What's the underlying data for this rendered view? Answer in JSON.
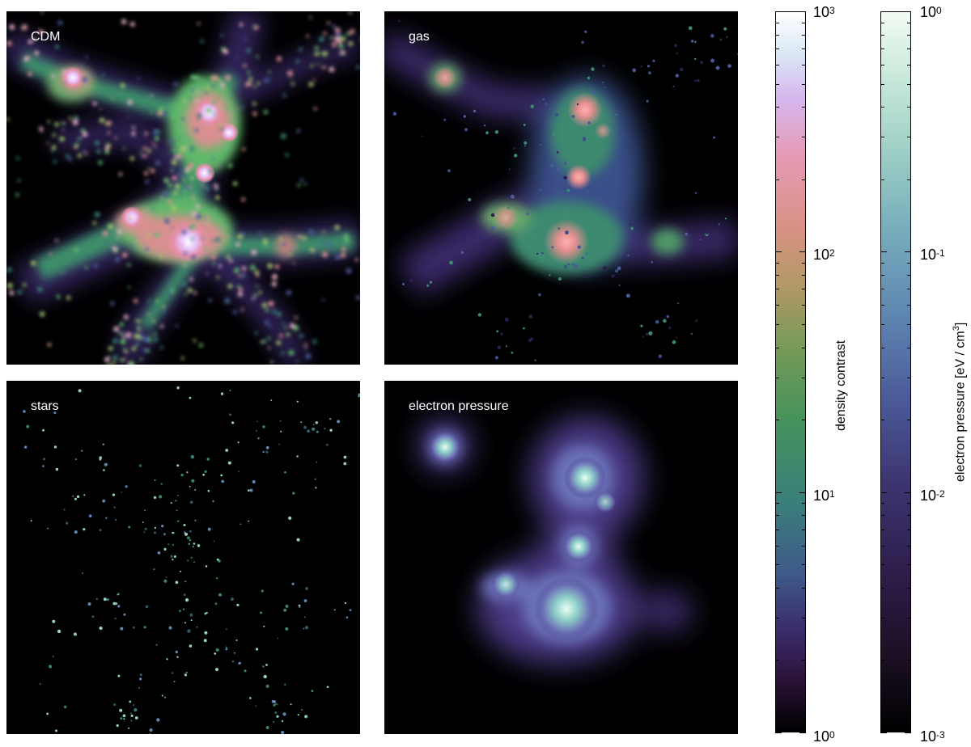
{
  "panels": {
    "cdm": {
      "label": "CDM"
    },
    "gas": {
      "label": "gas"
    },
    "stars": {
      "label": "stars"
    },
    "pressure": {
      "label": "electron pressure"
    }
  },
  "colorbars": {
    "density": {
      "title": "density contrast",
      "ticks": [
        {
          "base": "10",
          "exp": "3"
        },
        {
          "base": "10",
          "exp": "2"
        },
        {
          "base": "10",
          "exp": "1"
        },
        {
          "base": "10",
          "exp": "0"
        }
      ]
    },
    "pressure": {
      "title_prefix": "electron pressure [eV / cm",
      "title_exp": "3",
      "title_suffix": "]",
      "ticks": [
        {
          "base": "10",
          "exp": "0"
        },
        {
          "base": "10",
          "exp": "-1"
        },
        {
          "base": "10",
          "exp": "-2"
        },
        {
          "base": "10",
          "exp": "-3"
        }
      ]
    }
  }
}
